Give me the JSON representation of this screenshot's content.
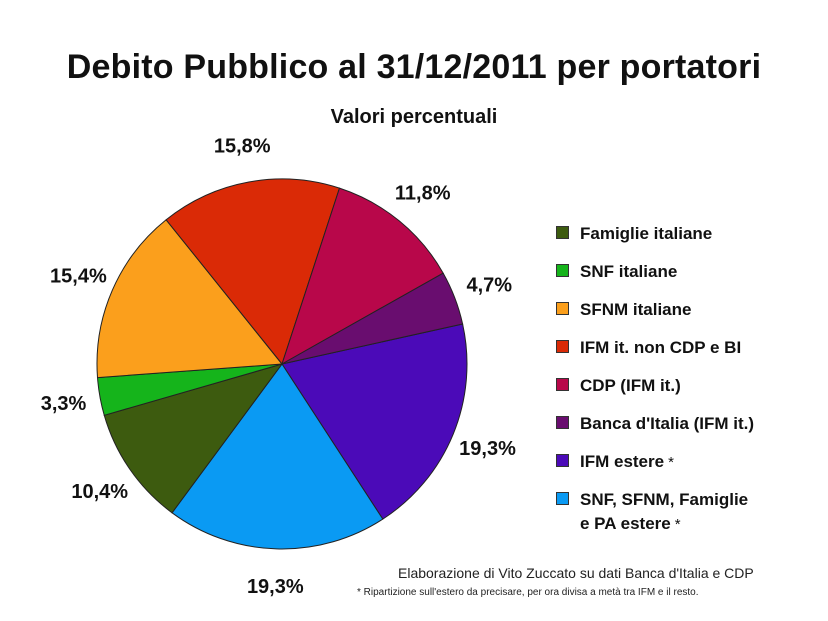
{
  "chart_data": {
    "type": "pie",
    "title": "Debito Pubblico al 31/12/2011 per portatori",
    "subtitle": "Valori percentuali",
    "slices": [
      {
        "label": "IFM estere",
        "value": 19.3,
        "display": "19,3%",
        "color": "#4b0ab8",
        "asterisk": true
      },
      {
        "label": "SNF, SFNM, Famiglie e PA estere",
        "value": 19.3,
        "display": "19,3%",
        "color": "#0a9af3",
        "asterisk": true
      },
      {
        "label": "Famiglie italiane",
        "value": 10.4,
        "display": "10,4%",
        "color": "#3d5b0f",
        "asterisk": false
      },
      {
        "label": "SNF italiane",
        "value": 3.3,
        "display": "3,3%",
        "color": "#15b41b",
        "asterisk": false
      },
      {
        "label": "SFNM italiane",
        "value": 15.4,
        "display": "15,4%",
        "color": "#fb9f1c",
        "asterisk": false
      },
      {
        "label": "IFM it. non CDP e BI",
        "value": 15.8,
        "display": "15,8%",
        "color": "#da2a06",
        "asterisk": false
      },
      {
        "label": "CDP (IFM it.)",
        "value": 11.8,
        "display": "11,8%",
        "color": "#b8074a",
        "asterisk": false
      },
      {
        "label": "Banca d'Italia (IFM it.)",
        "value": 4.7,
        "display": "4,7%",
        "color": "#690d6f",
        "asterisk": false
      }
    ],
    "legend": {
      "placement": "right",
      "entries": [
        {
          "line1": "Famiglie italiane",
          "line2": "",
          "color": "#3d5b0f",
          "asterisk": false
        },
        {
          "line1": "SNF italiane",
          "line2": "",
          "color": "#15b41b",
          "asterisk": false
        },
        {
          "line1": "SFNM italiane",
          "line2": "",
          "color": "#fb9f1c",
          "asterisk": false
        },
        {
          "line1": "IFM it. non CDP e BI",
          "line2": "",
          "color": "#da2a06",
          "asterisk": false
        },
        {
          "line1": "CDP (IFM it.)",
          "line2": "",
          "color": "#b8074a",
          "asterisk": false
        },
        {
          "line1": "Banca d'Italia (IFM it.)",
          "line2": "",
          "color": "#690d6f",
          "asterisk": false
        },
        {
          "line1": "IFM estere",
          "line2": "",
          "color": "#4b0ab8",
          "asterisk": true
        },
        {
          "line1": "SNF, SFNM, Famiglie",
          "line2": "e PA estere",
          "color": "#0a9af3",
          "asterisk": true
        }
      ]
    },
    "credit": "Elaborazione di Vito Zuccato su dati Banca d'Italia e CDP",
    "footnote": "* Ripartizione sull'estero da precisare, per ora divisa a metà tra IFM e il resto.",
    "asterisk_symbol": "*"
  }
}
